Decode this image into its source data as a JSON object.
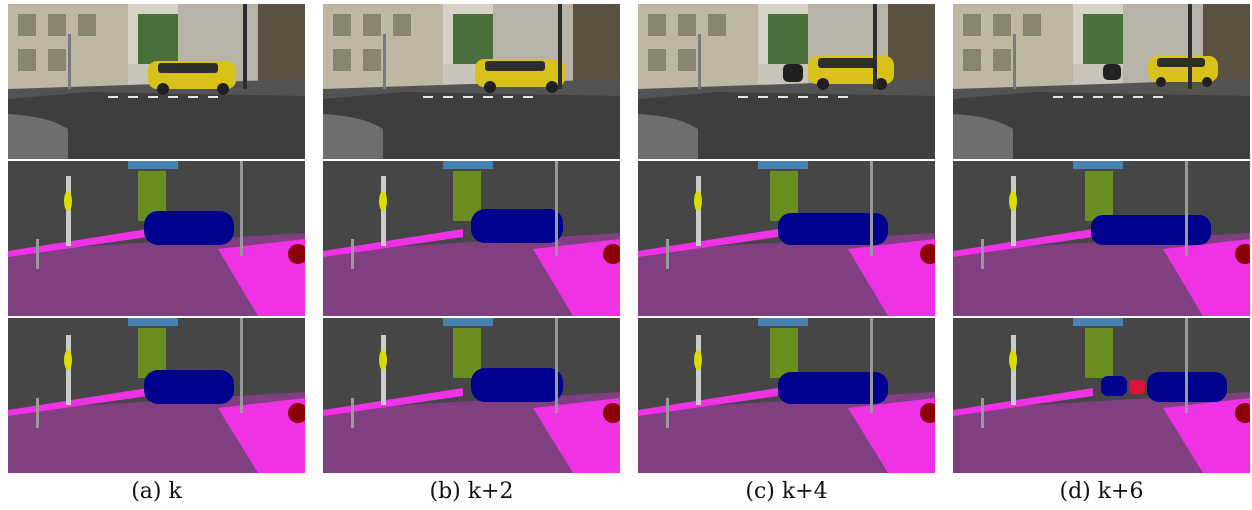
{
  "figure": {
    "columns": [
      {
        "caption": "(a) k"
      },
      {
        "caption": "(b) k+2"
      },
      {
        "caption": "(c) k+4"
      },
      {
        "caption": "(d) k+6"
      }
    ]
  },
  "colors": {
    "road": "#7f3f80",
    "sidewalk": "#f032e6",
    "building": "#464646",
    "vegetation": "#6b8e23",
    "sky": "#4682b4",
    "car": "#00008e",
    "pole": "#999999",
    "traffic_sign": "#dcdc00",
    "traffic_light": "#faaa1e",
    "person": "#dc143c",
    "rider": "#8b0000"
  }
}
